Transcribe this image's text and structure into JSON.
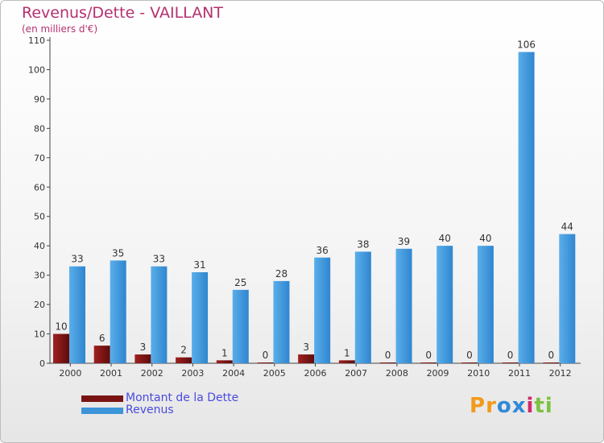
{
  "chart_data": {
    "type": "bar",
    "title": "Revenus/Dette - VAILLANT",
    "subtitle": "(en milliers d'€)",
    "categories": [
      "2000",
      "2001",
      "2002",
      "2003",
      "2004",
      "2005",
      "2006",
      "2007",
      "2008",
      "2009",
      "2010",
      "2011",
      "2012"
    ],
    "series": [
      {
        "name": "Montant de la Dette",
        "color": "#7a1414",
        "values": [
          10,
          6,
          3,
          2,
          1,
          0,
          3,
          1,
          0,
          0,
          0,
          0,
          0
        ]
      },
      {
        "name": "Revenus",
        "color": "#3d95d9",
        "values": [
          33,
          35,
          33,
          31,
          25,
          28,
          36,
          38,
          39,
          40,
          40,
          106,
          44
        ]
      }
    ],
    "ylim": [
      0,
      110
    ],
    "yticks": [
      0,
      10,
      20,
      30,
      40,
      50,
      60,
      70,
      80,
      90,
      100,
      110
    ],
    "grid": false,
    "legend_position": "bottom-left"
  },
  "logo": {
    "text": "Proxiti",
    "letters": [
      "P",
      "r",
      "o",
      "x",
      "i",
      "t",
      "i"
    ],
    "colors": [
      "#f29a1c",
      "#f29a1c",
      "#2f8ad8",
      "#2f8ad8",
      "#d12a6a",
      "#7cc242",
      "#7cc242"
    ]
  }
}
